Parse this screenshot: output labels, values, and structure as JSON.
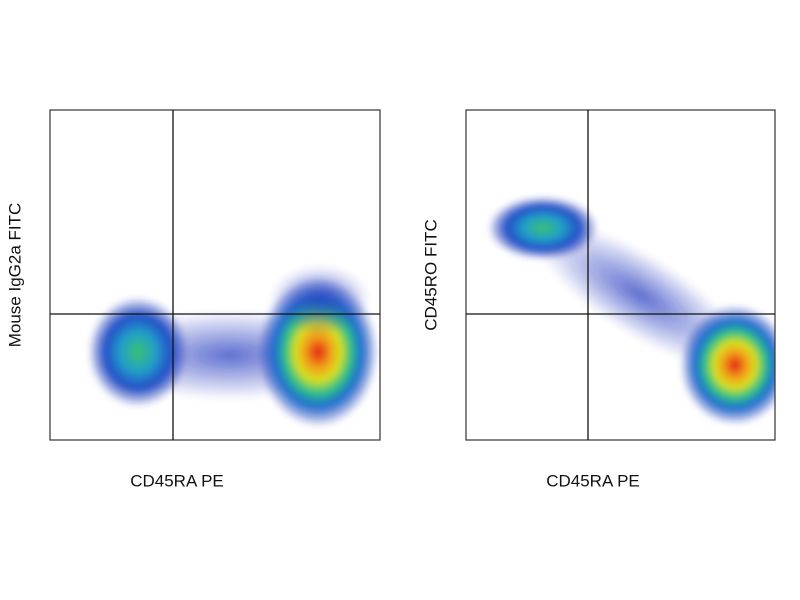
{
  "chart_data": [
    {
      "type": "density",
      "x_label": "CD45RA PE",
      "y_label": "Mouse IgG2a FITC"
    },
    {
      "type": "density",
      "x_label": "CD45RA PE",
      "y_label": "CD45RO FITC"
    }
  ]
}
